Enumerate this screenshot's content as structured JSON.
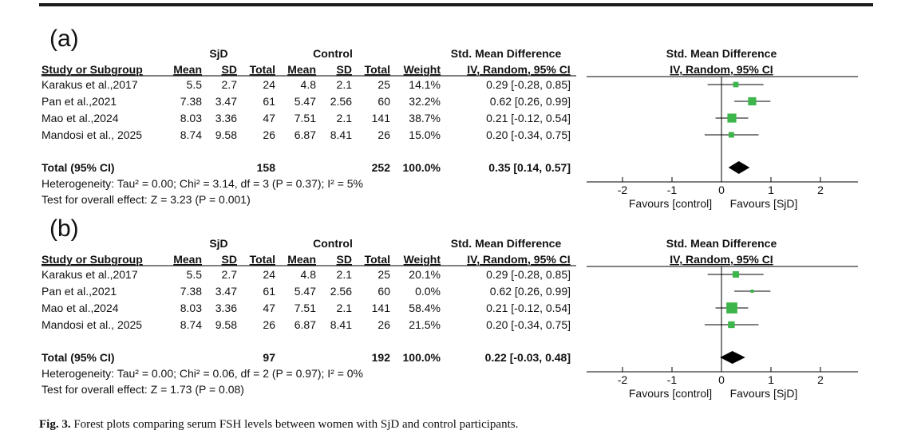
{
  "caption": {
    "label": "Fig. 3.",
    "text": "Forest plots comparing serum FSH levels between women with SjD and control participants."
  },
  "colors": {
    "marker": "#3cb54a",
    "diamond": "#000000",
    "line": "#000000"
  },
  "table_headers": {
    "group1": "SjD",
    "group2": "Control",
    "smd_header": "Std. Mean Difference",
    "smd_subheader": "IV, Random, 95% CI",
    "plot_header": "Std. Mean Difference",
    "plot_subheader": "IV, Random, 95% CI",
    "study": "Study or Subgroup",
    "mean1": "Mean",
    "sd1": "SD",
    "total1": "Total",
    "mean2": "Mean",
    "sd2": "SD",
    "total2": "Total",
    "weight": "Weight"
  },
  "chart_data": [
    {
      "type": "forest",
      "panel": "(a)",
      "xlim": [
        -2,
        2
      ],
      "ticks": [
        "-2",
        "-1",
        "0",
        "1",
        "2"
      ],
      "tick_values": [
        -2,
        -1,
        0,
        1,
        2
      ],
      "favours_left": "Favours [control]",
      "favours_right": "Favours [SjD]",
      "studies": [
        {
          "name": "Karakus et al.,2017",
          "mean1": "5.5",
          "sd1": "2.7",
          "total1": "24",
          "mean2": "4.8",
          "sd2": "2.1",
          "total2": "25",
          "weight": "14.1%",
          "ci_text": "0.29 [-0.28, 0.85]",
          "est": 0.29,
          "lo": -0.28,
          "hi": 0.85,
          "w": 14.1
        },
        {
          "name": "Pan et al.,2021",
          "mean1": "7.38",
          "sd1": "3.47",
          "total1": "61",
          "mean2": "5.47",
          "sd2": "2.56",
          "total2": "60",
          "weight": "32.2%",
          "ci_text": "0.62 [0.26, 0.99]",
          "est": 0.62,
          "lo": 0.26,
          "hi": 0.99,
          "w": 32.2
        },
        {
          "name": "Mao et al.,2024",
          "mean1": "8.03",
          "sd1": "3.36",
          "total1": "47",
          "mean2": "7.51",
          "sd2": "2.1",
          "total2": "141",
          "weight": "38.7%",
          "ci_text": "0.21 [-0.12, 0.54]",
          "est": 0.21,
          "lo": -0.12,
          "hi": 0.54,
          "w": 38.7
        },
        {
          "name": "Mandosi et al., 2025",
          "mean1": "8.74",
          "sd1": "9.58",
          "total1": "26",
          "mean2": "6.87",
          "sd2": "8.41",
          "total2": "26",
          "weight": "15.0%",
          "ci_text": "0.20 [-0.34, 0.75]",
          "est": 0.2,
          "lo": -0.34,
          "hi": 0.75,
          "w": 15.0
        }
      ],
      "total": {
        "label": "Total (95% CI)",
        "total1": "158",
        "total2": "252",
        "weight": "100.0%",
        "ci_text": "0.35 [0.14, 0.57]",
        "est": 0.35,
        "lo": 0.14,
        "hi": 0.57
      },
      "heterogeneity": "Heterogeneity: Tau² = 0.00; Chi² = 3.14, df = 3 (P = 0.37); I² = 5%",
      "overall": "Test for overall effect: Z = 3.23 (P = 0.001)"
    },
    {
      "type": "forest",
      "panel": "(b)",
      "xlim": [
        -2,
        2
      ],
      "ticks": [
        "-2",
        "-1",
        "0",
        "1",
        "2"
      ],
      "tick_values": [
        -2,
        -1,
        0,
        1,
        2
      ],
      "favours_left": "Favours [control]",
      "favours_right": "Favours [SjD]",
      "studies": [
        {
          "name": "Karakus et al.,2017",
          "mean1": "5.5",
          "sd1": "2.7",
          "total1": "24",
          "mean2": "4.8",
          "sd2": "2.1",
          "total2": "25",
          "weight": "20.1%",
          "ci_text": "0.29 [-0.28, 0.85]",
          "est": 0.29,
          "lo": -0.28,
          "hi": 0.85,
          "w": 20.1
        },
        {
          "name": "Pan et al.,2021",
          "mean1": "7.38",
          "sd1": "3.47",
          "total1": "61",
          "mean2": "5.47",
          "sd2": "2.56",
          "total2": "60",
          "weight": "0.0%",
          "ci_text": "0.62 [0.26, 0.99]",
          "est": 0.62,
          "lo": 0.26,
          "hi": 0.99,
          "w": 0.0
        },
        {
          "name": "Mao et al.,2024",
          "mean1": "8.03",
          "sd1": "3.36",
          "total1": "47",
          "mean2": "7.51",
          "sd2": "2.1",
          "total2": "141",
          "weight": "58.4%",
          "ci_text": "0.21 [-0.12, 0.54]",
          "est": 0.21,
          "lo": -0.12,
          "hi": 0.54,
          "w": 58.4
        },
        {
          "name": "Mandosi et al., 2025",
          "mean1": "8.74",
          "sd1": "9.58",
          "total1": "26",
          "mean2": "6.87",
          "sd2": "8.41",
          "total2": "26",
          "weight": "21.5%",
          "ci_text": "0.20 [-0.34, 0.75]",
          "est": 0.2,
          "lo": -0.34,
          "hi": 0.75,
          "w": 21.5
        }
      ],
      "total": {
        "label": "Total (95% CI)",
        "total1": "97",
        "total2": "192",
        "weight": "100.0%",
        "ci_text": "0.22 [-0.03, 0.48]",
        "est": 0.22,
        "lo": -0.03,
        "hi": 0.48
      },
      "heterogeneity": "Heterogeneity: Tau² = 0.00; Chi² = 0.06, df = 2 (P = 0.97); I² = 0%",
      "overall": "Test for overall effect: Z = 1.73 (P = 0.08)"
    }
  ]
}
